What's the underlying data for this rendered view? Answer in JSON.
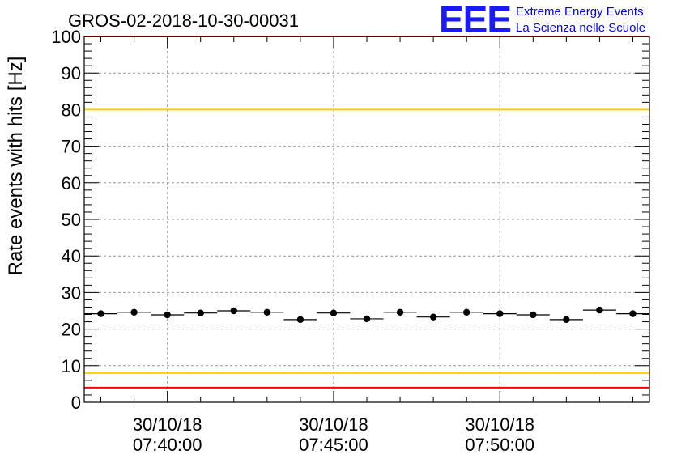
{
  "title": "GROS-02-2018-10-30-00031",
  "logo": {
    "mark": "EEE",
    "line1": "Extreme Energy Events",
    "line2": "La Scienza nelle Scuole",
    "color": "#1a1aff"
  },
  "chart_data": {
    "type": "scatter",
    "ylabel": "Rate events with hits [Hz]",
    "ylim": [
      0,
      100
    ],
    "yticks": [
      0,
      10,
      20,
      30,
      40,
      50,
      60,
      70,
      80,
      90,
      100
    ],
    "xlim": [
      "2018-10-30 07:37:30",
      "2018-10-30 07:54:30"
    ],
    "xticks": [
      {
        "t": "2018-10-30 07:40:00",
        "date": "30/10/18",
        "time": "07:40:00"
      },
      {
        "t": "2018-10-30 07:45:00",
        "date": "30/10/18",
        "time": "07:45:00"
      },
      {
        "t": "2018-10-30 07:50:00",
        "date": "30/10/18",
        "time": "07:50:00"
      }
    ],
    "grid": true,
    "reference_lines": [
      {
        "y": 4,
        "color": "#ff0000"
      },
      {
        "y": 8,
        "color": "#ffcc00"
      },
      {
        "y": 80,
        "color": "#ffcc00"
      },
      {
        "y": 100,
        "color": "#ff0000"
      }
    ],
    "bin_width_seconds": 60,
    "x": [
      "2018-10-30 07:38:00",
      "2018-10-30 07:39:00",
      "2018-10-30 07:40:00",
      "2018-10-30 07:41:00",
      "2018-10-30 07:42:00",
      "2018-10-30 07:43:00",
      "2018-10-30 07:44:00",
      "2018-10-30 07:45:00",
      "2018-10-30 07:46:00",
      "2018-10-30 07:47:00",
      "2018-10-30 07:48:00",
      "2018-10-30 07:49:00",
      "2018-10-30 07:50:00",
      "2018-10-30 07:51:00",
      "2018-10-30 07:52:00",
      "2018-10-30 07:53:00",
      "2018-10-30 07:54:00"
    ],
    "values": [
      24.2,
      24.6,
      23.9,
      24.4,
      25.0,
      24.6,
      22.6,
      24.4,
      22.8,
      24.6,
      23.3,
      24.6,
      24.2,
      23.9,
      22.6,
      25.2,
      24.2
    ],
    "marker_color": "#000000"
  }
}
